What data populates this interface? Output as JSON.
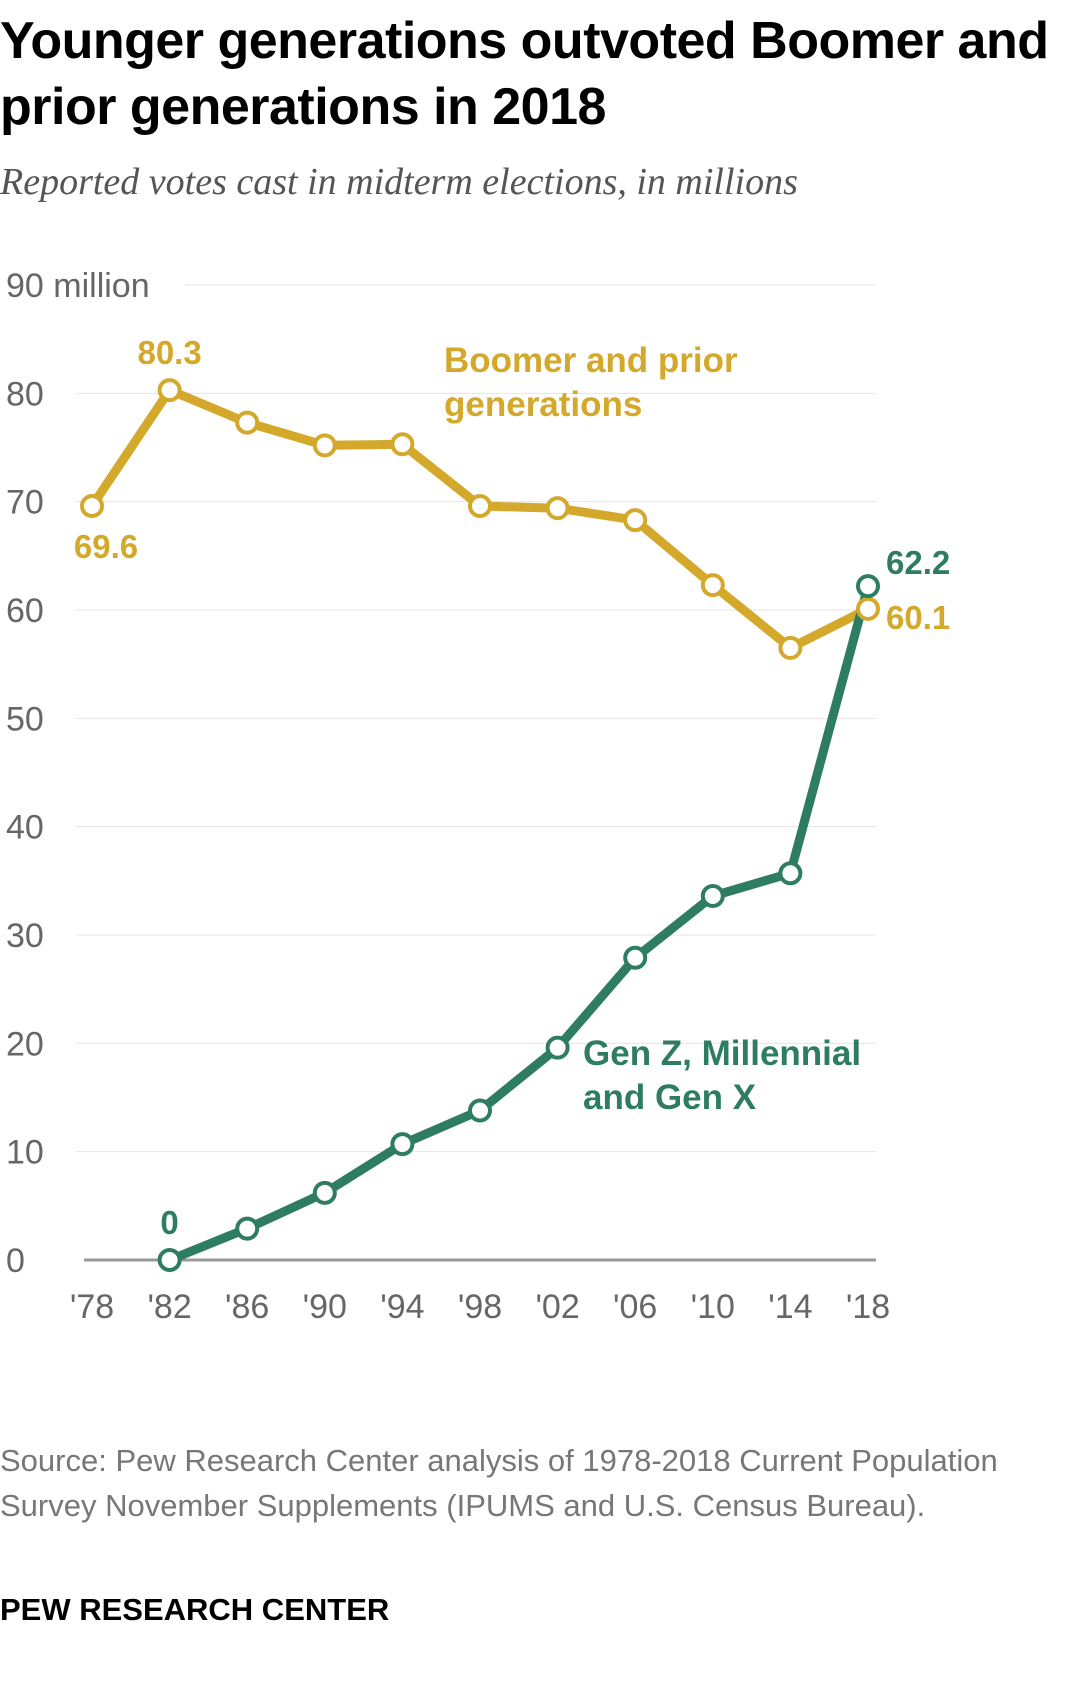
{
  "header": {
    "title": "Younger generations outvoted Boomer and prior generations in 2018",
    "subtitle": "Reported votes cast in midterm elections, in millions"
  },
  "footer": {
    "source": "Source: Pew Research Center analysis of 1978-2018 Current Population Survey November Supplements (IPUMS and U.S. Census Bureau).",
    "brand": "PEW RESEARCH CENTER"
  },
  "colors": {
    "boomer": "#D4A82A",
    "genx": "#2E7D63",
    "grid": "#e4e4e4",
    "axis": "#999999"
  },
  "chart_data": {
    "type": "line",
    "title": "Younger generations outvoted Boomer and prior generations in 2018",
    "subtitle": "Reported votes cast in midterm elections, in millions",
    "xlabel": "",
    "ylabel": "",
    "x": [
      "'78",
      "'82",
      "'86",
      "'90",
      "'94",
      "'98",
      "'02",
      "'06",
      "'10",
      "'14",
      "'18"
    ],
    "y_ticks": [
      0,
      10,
      20,
      30,
      40,
      50,
      60,
      70,
      80,
      90
    ],
    "y_tick_labels": [
      "0",
      "10",
      "20",
      "30",
      "40",
      "50",
      "60",
      "70",
      "80",
      "90 million"
    ],
    "ylim": [
      0,
      90
    ],
    "grid": true,
    "series": [
      {
        "name": "Boomer and prior generations",
        "label_lines": [
          "Boomer and prior",
          "generations"
        ],
        "color": "#D4A82A",
        "values": [
          69.6,
          80.3,
          77.3,
          75.2,
          75.3,
          69.6,
          69.4,
          68.3,
          62.3,
          56.5,
          60.1
        ],
        "labels": [
          {
            "index": 0,
            "text": "69.6",
            "anchor": "below"
          },
          {
            "index": 1,
            "text": "80.3",
            "anchor": "above"
          },
          {
            "index": 10,
            "text": "60.1",
            "anchor": "right"
          }
        ]
      },
      {
        "name": "Gen Z, Millennial and Gen X",
        "label_lines": [
          "Gen Z, Millennial",
          "and Gen X"
        ],
        "color": "#2E7D63",
        "start_index": 1,
        "values": [
          null,
          0,
          2.9,
          6.2,
          10.7,
          13.8,
          19.6,
          27.9,
          33.6,
          35.7,
          62.2
        ],
        "labels": [
          {
            "index": 1,
            "text": "0",
            "anchor": "above"
          },
          {
            "index": 10,
            "text": "62.2",
            "anchor": "right"
          }
        ]
      }
    ]
  }
}
